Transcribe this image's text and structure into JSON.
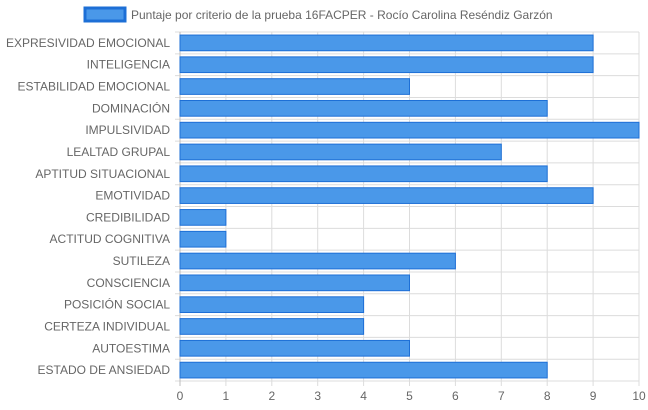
{
  "chart_data": {
    "type": "bar",
    "orientation": "horizontal",
    "categories": [
      "EXPRESIVIDAD EMOCIONAL",
      "INTELIGENCIA",
      "ESTABILIDAD EMOCIONAL",
      "DOMINACIÓN",
      "IMPULSIVIDAD",
      "LEALTAD GRUPAL",
      "APTITUD SITUACIONAL",
      "EMOTIVIDAD",
      "CREDIBILIDAD",
      "ACTITUD COGNITIVA",
      "SUTILEZA",
      "CONSCIENCIA",
      "POSICIÓN SOCIAL",
      "CERTEZA INDIVIDUAL",
      "AUTOESTIMA",
      "ESTADO DE ANSIEDAD"
    ],
    "series": [
      {
        "name": "Puntaje por criterio de la prueba 16FACPER - Rocío Carolina Reséndiz Garzón",
        "values": [
          9,
          9,
          5,
          8,
          10,
          7,
          8,
          9,
          1,
          1,
          6,
          5,
          4,
          4,
          5,
          8
        ],
        "color": "#4a98e9",
        "border_color": "#1d6fd6"
      }
    ],
    "xlim": [
      0,
      10
    ],
    "x_ticks": [
      "0",
      "1",
      "2",
      "3",
      "4",
      "5",
      "6",
      "7",
      "8",
      "9",
      "10"
    ],
    "grid": true,
    "legend_position": "top"
  }
}
